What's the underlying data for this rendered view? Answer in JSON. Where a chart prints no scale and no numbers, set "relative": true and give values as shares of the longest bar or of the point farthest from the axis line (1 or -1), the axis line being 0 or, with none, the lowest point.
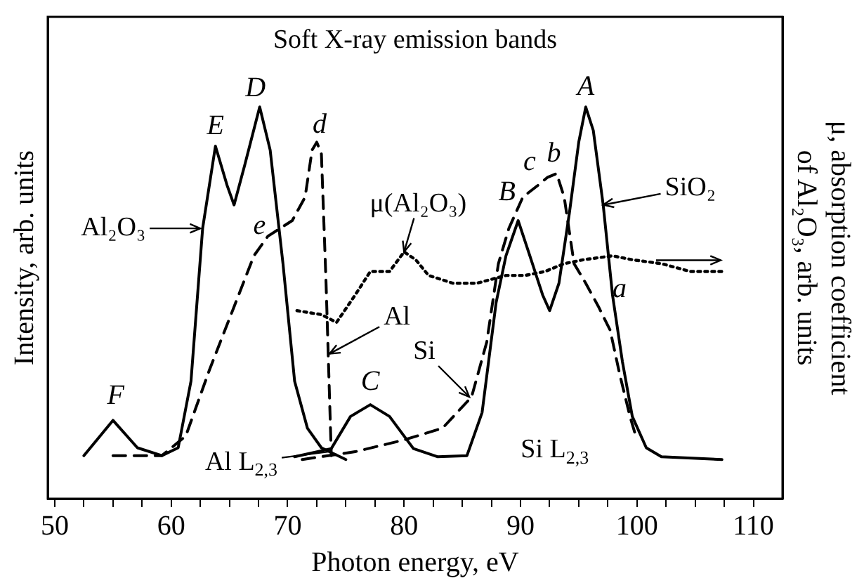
{
  "chart_data": {
    "type": "line",
    "title": "Soft X-ray emission bands",
    "xlabel": "Photon energy, eV",
    "ylabel": "Intensity, arb. units",
    "y2label": "μ, absorption coefficient of Al₂O₃, arb. units",
    "relative": true,
    "xlim": [
      49.4,
      112.5
    ],
    "xticks": [
      50,
      {
        "value": 52.5,
        "label": null
      },
      {
        "value": 55,
        "label": null
      },
      {
        "value": 57.5,
        "label": null
      },
      60,
      {
        "value": 62.5,
        "label": null
      },
      {
        "value": 65,
        "label": null
      },
      {
        "value": 67.5,
        "label": null
      },
      70,
      {
        "value": 72.5,
        "label": null
      },
      {
        "value": 75,
        "label": null
      },
      {
        "value": 77.5,
        "label": null
      },
      80,
      {
        "value": 82.5,
        "label": null
      },
      {
        "value": 85,
        "label": null
      },
      {
        "value": 87.5,
        "label": null
      },
      90,
      {
        "value": 92.5,
        "label": null
      },
      {
        "value": 95,
        "label": null
      },
      {
        "value": 97.5,
        "label": null
      },
      100,
      {
        "value": 102.5,
        "label": null
      },
      {
        "value": 105,
        "label": null
      },
      {
        "value": 107.5,
        "label": null
      },
      110
    ],
    "series": [
      {
        "color": "#000000",
        "line_style": "solid",
        "x": [
          52.5,
          55.0,
          57.1,
          59.2,
          60.6,
          61.7,
          62.7,
          63.8,
          64.8,
          65.4,
          66.3,
          67.6,
          68.5,
          69.6,
          70.6,
          71.7,
          72.9,
          75.0
        ],
        "values": [
          0.11,
          0.2,
          0.13,
          0.11,
          0.13,
          0.3,
          0.69,
          0.9,
          0.8,
          0.75,
          0.85,
          1.0,
          0.89,
          0.6,
          0.3,
          0.18,
          0.13,
          0.1
        ]
      },
      {
        "color": "#000000",
        "line_style": "solid",
        "x": [
          70.6,
          73.75,
          75.4,
          77.1,
          78.75,
          80.8,
          82.9,
          85.4,
          86.7,
          87.9,
          88.75,
          89.8,
          90.8,
          91.9,
          92.5,
          93.3,
          94.2,
          95.0,
          95.6,
          96.25,
          97.1,
          97.9,
          98.75,
          99.6,
          100.8,
          102.1,
          107.3
        ],
        "values": [
          0.107,
          0.128,
          0.21,
          0.24,
          0.21,
          0.128,
          0.107,
          0.11,
          0.22,
          0.5,
          0.62,
          0.71,
          0.62,
          0.52,
          0.48,
          0.55,
          0.73,
          0.91,
          1.0,
          0.94,
          0.75,
          0.52,
          0.35,
          0.21,
          0.13,
          0.107,
          0.1
        ]
      },
      {
        "color": "#000000",
        "line_style": "dashed",
        "x": [
          55.0,
          59.2,
          61.25,
          63.3,
          65.4,
          67.1,
          68.3,
          70.4,
          71.5,
          72.1,
          72.5,
          72.9,
          73.3,
          73.75
        ],
        "values": [
          0.11,
          0.11,
          0.16,
          0.33,
          0.49,
          0.62,
          0.67,
          0.71,
          0.77,
          0.89,
          0.91,
          0.88,
          0.55,
          0.11
        ]
      },
      {
        "color": "#000000",
        "line_style": "dashed",
        "x": [
          71.25,
          75.8,
          80.0,
          83.3,
          85.8,
          87.1,
          88.1,
          89.0,
          90.2,
          91.5,
          92.3,
          93.1,
          93.75,
          94.6,
          95.6,
          96.7,
          97.7,
          98.5,
          99.4,
          100.0
        ],
        "values": [
          0.1,
          0.12,
          0.15,
          0.18,
          0.26,
          0.4,
          0.6,
          0.69,
          0.77,
          0.8,
          0.82,
          0.83,
          0.77,
          0.6,
          0.55,
          0.49,
          0.43,
          0.32,
          0.21,
          0.15
        ]
      },
      {
        "color": "#000000",
        "line_style": "dotted",
        "axis": "y2",
        "x": [
          70.8,
          72.9,
          74.2,
          75.8,
          77.1,
          78.75,
          80.0,
          81.0,
          82.1,
          84.2,
          86.25,
          88.75,
          90.4,
          92.1,
          93.75,
          95.4,
          97.9,
          99.6,
          102.1,
          104.6,
          107.3
        ],
        "values": [
          0.48,
          0.47,
          0.45,
          0.52,
          0.58,
          0.58,
          0.63,
          0.61,
          0.57,
          0.55,
          0.55,
          0.57,
          0.57,
          0.58,
          0.6,
          0.61,
          0.62,
          0.61,
          0.6,
          0.58,
          0.58
        ]
      }
    ],
    "annotations": [
      {
        "text": "A",
        "x": 95.6,
        "y": 1.0
      },
      {
        "text": "B",
        "x": 89.8,
        "y": 0.71
      },
      {
        "text": "C",
        "x": 77.1,
        "y": 0.24
      },
      {
        "text": "D",
        "x": 67.6,
        "y": 1.0
      },
      {
        "text": "E",
        "x": 63.8,
        "y": 0.9
      },
      {
        "text": "F",
        "x": 55.0,
        "y": 0.2
      },
      {
        "text": "a",
        "x": 96.7,
        "y": 0.49
      },
      {
        "text": "b",
        "x": 93.1,
        "y": 0.83
      },
      {
        "text": "c",
        "x": 91.5,
        "y": 0.8
      },
      {
        "text": "d",
        "x": 72.5,
        "y": 0.91
      },
      {
        "text": "e",
        "x": 68.3,
        "y": 0.67
      },
      {
        "text": "Al₂O₃",
        "x": 62.5,
        "y": 0.69
      },
      {
        "text": "SiO₂",
        "x": 97.1,
        "y": 0.75
      },
      {
        "text": "μ(Al₂O₃)",
        "x": 80.0,
        "y": 0.63
      },
      {
        "text": "Al",
        "x": 73.6,
        "y": 0.37
      },
      {
        "text": "Si",
        "x": 85.6,
        "y": 0.26
      },
      {
        "text": "Al L$_{2,3}$",
        "x": 73.5,
        "y": 0.12
      },
      "Si L$_{2,3}$"
    ]
  }
}
